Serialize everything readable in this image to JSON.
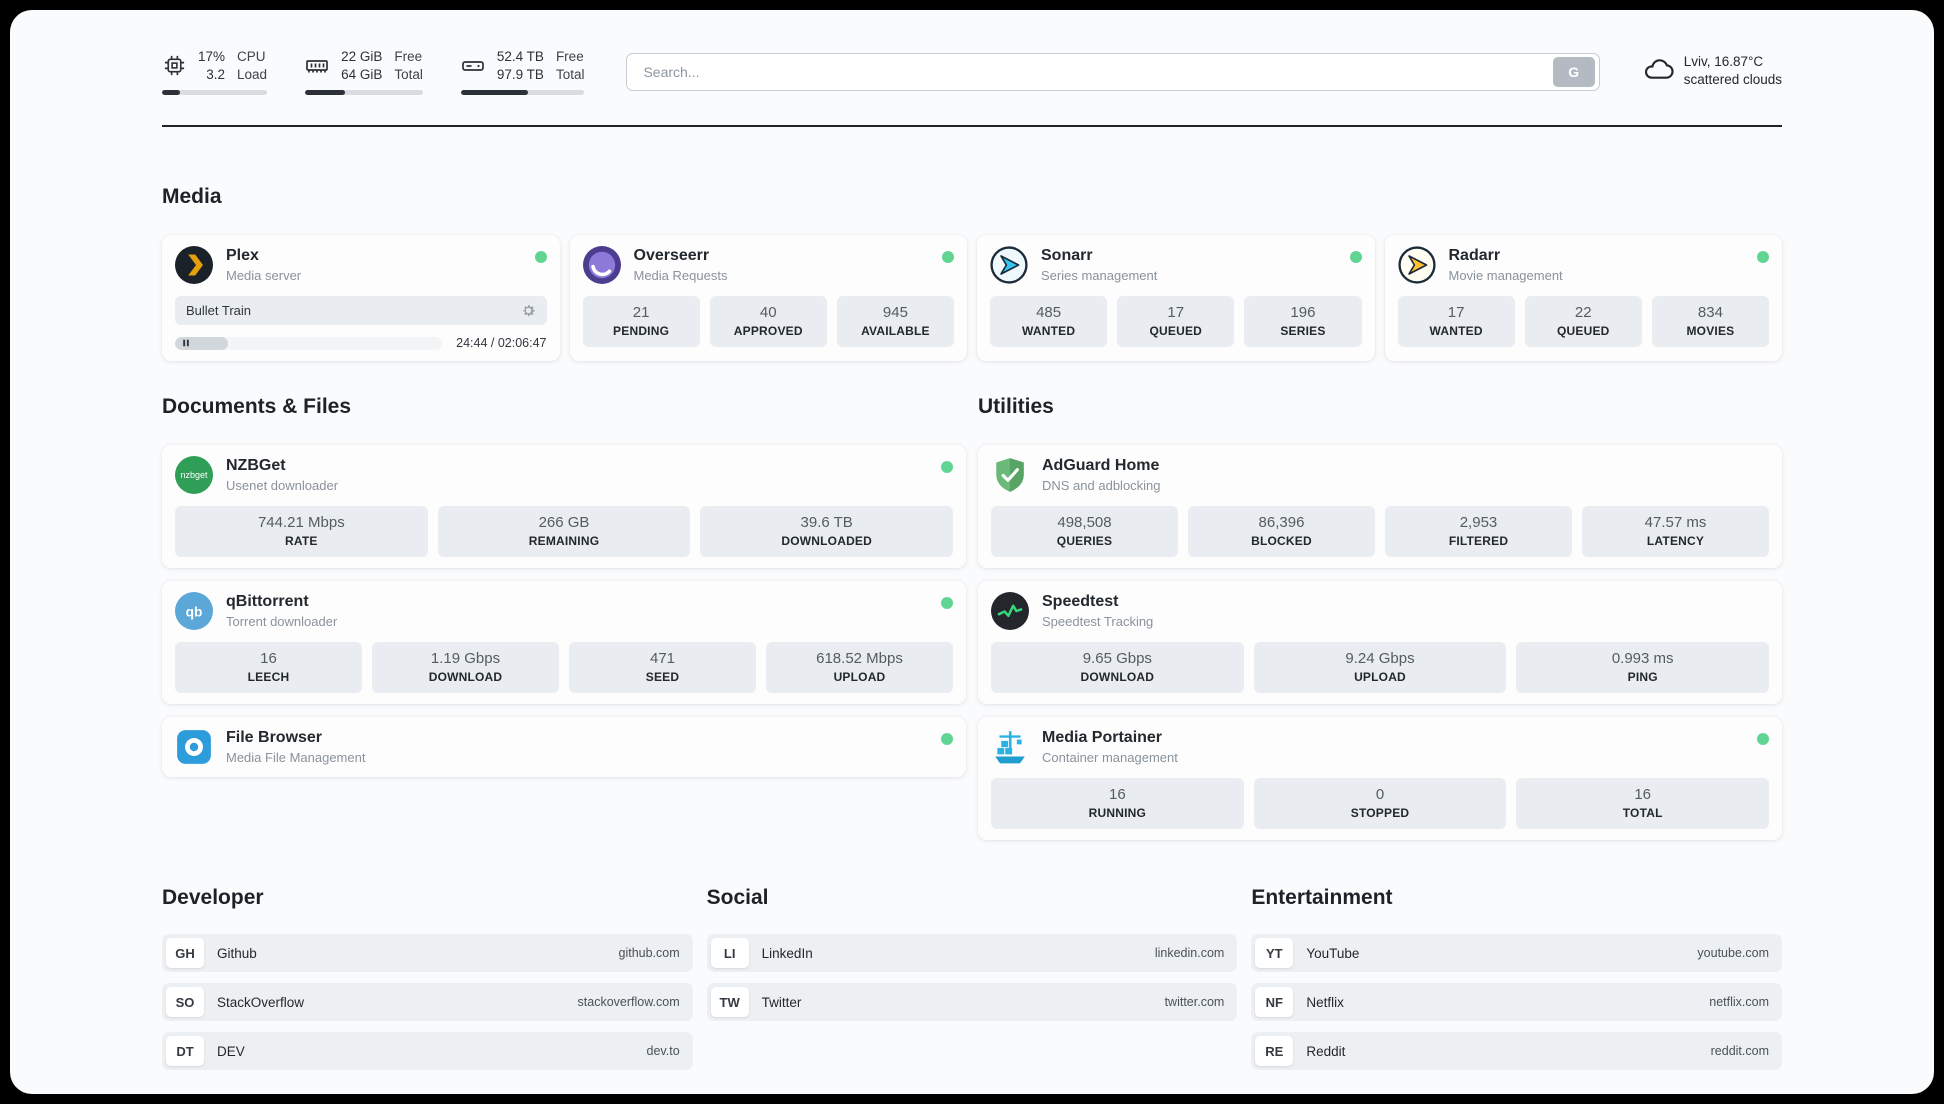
{
  "colors": {
    "status_green": "#62d492"
  },
  "header": {
    "metrics": [
      {
        "icon": "cpu-icon",
        "values": [
          "17%",
          "3.2"
        ],
        "labels": [
          "CPU",
          "Load"
        ],
        "progress_percent": 17
      },
      {
        "icon": "ram-icon",
        "values": [
          "22 GiB",
          "64 GiB"
        ],
        "labels": [
          "Free",
          "Total"
        ],
        "progress_percent": 34
      },
      {
        "icon": "disk-icon",
        "values": [
          "52.4 TB",
          "97.9 TB"
        ],
        "labels": [
          "Free",
          "Total"
        ],
        "progress_percent": 54
      }
    ],
    "search": {
      "placeholder": "Search...",
      "button_label": "G"
    },
    "weather": {
      "location": "Lviv, 16.87°C",
      "condition": "scattered clouds"
    }
  },
  "media": {
    "title": "Media",
    "plex": {
      "name": "Plex",
      "subtitle": "Media server",
      "now_playing": {
        "title": "Bullet Train",
        "time": "24:44 / 02:06:47",
        "progress_percent": 20
      }
    },
    "apps": [
      {
        "name": "Overseerr",
        "subtitle": "Media Requests",
        "stats": [
          {
            "value": "21",
            "label": "PENDING"
          },
          {
            "value": "40",
            "label": "APPROVED"
          },
          {
            "value": "945",
            "label": "AVAILABLE"
          }
        ]
      },
      {
        "name": "Sonarr",
        "subtitle": "Series management",
        "stats": [
          {
            "value": "485",
            "label": "WANTED"
          },
          {
            "value": "17",
            "label": "QUEUED"
          },
          {
            "value": "196",
            "label": "SERIES"
          }
        ]
      },
      {
        "name": "Radarr",
        "subtitle": "Movie management",
        "stats": [
          {
            "value": "17",
            "label": "WANTED"
          },
          {
            "value": "22",
            "label": "QUEUED"
          },
          {
            "value": "834",
            "label": "MOVIES"
          }
        ]
      }
    ]
  },
  "documents": {
    "title": "Documents & Files",
    "apps": [
      {
        "name": "NZBGet",
        "subtitle": "Usenet downloader",
        "stats": [
          {
            "value": "744.21 Mbps",
            "label": "RATE"
          },
          {
            "value": "266 GB",
            "label": "REMAINING"
          },
          {
            "value": "39.6 TB",
            "label": "DOWNLOADED"
          }
        ]
      },
      {
        "name": "qBittorrent",
        "subtitle": "Torrent downloader",
        "stats": [
          {
            "value": "16",
            "label": "LEECH"
          },
          {
            "value": "1.19 Gbps",
            "label": "DOWNLOAD"
          },
          {
            "value": "471",
            "label": "SEED"
          },
          {
            "value": "618.52 Mbps",
            "label": "UPLOAD"
          }
        ]
      },
      {
        "name": "File Browser",
        "subtitle": "Media File Management",
        "stats": []
      }
    ]
  },
  "utilities": {
    "title": "Utilities",
    "apps": [
      {
        "name": "AdGuard Home",
        "subtitle": "DNS and adblocking",
        "stats": [
          {
            "value": "498,508",
            "label": "QUERIES"
          },
          {
            "value": "86,396",
            "label": "BLOCKED"
          },
          {
            "value": "2,953",
            "label": "FILTERED"
          },
          {
            "value": "47.57 ms",
            "label": "LATENCY"
          }
        ]
      },
      {
        "name": "Speedtest",
        "subtitle": "Speedtest Tracking",
        "stats": [
          {
            "value": "9.65 Gbps",
            "label": "DOWNLOAD"
          },
          {
            "value": "9.24 Gbps",
            "label": "UPLOAD"
          },
          {
            "value": "0.993 ms",
            "label": "PING"
          }
        ]
      },
      {
        "name": "Media Portainer",
        "subtitle": "Container management",
        "stats": [
          {
            "value": "16",
            "label": "RUNNING"
          },
          {
            "value": "0",
            "label": "STOPPED"
          },
          {
            "value": "16",
            "label": "TOTAL"
          }
        ]
      }
    ]
  },
  "bookmarks": [
    {
      "title": "Developer",
      "items": [
        {
          "abbr": "GH",
          "name": "Github",
          "url": "github.com"
        },
        {
          "abbr": "SO",
          "name": "StackOverflow",
          "url": "stackoverflow.com"
        },
        {
          "abbr": "DT",
          "name": "DEV",
          "url": "dev.to"
        }
      ]
    },
    {
      "title": "Social",
      "items": [
        {
          "abbr": "LI",
          "name": "LinkedIn",
          "url": "linkedin.com"
        },
        {
          "abbr": "TW",
          "name": "Twitter",
          "url": "twitter.com"
        }
      ]
    },
    {
      "title": "Entertainment",
      "items": [
        {
          "abbr": "YT",
          "name": "YouTube",
          "url": "youtube.com"
        },
        {
          "abbr": "NF",
          "name": "Netflix",
          "url": "netflix.com"
        },
        {
          "abbr": "RE",
          "name": "Reddit",
          "url": "reddit.com"
        }
      ]
    }
  ]
}
